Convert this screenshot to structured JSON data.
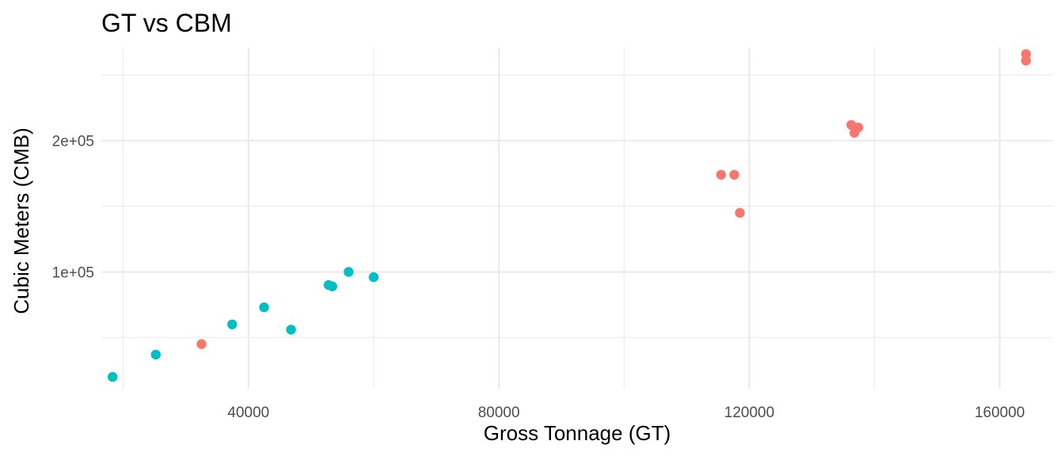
{
  "chart_data": {
    "type": "scatter",
    "title": "GT vs CBM",
    "xlabel": "Gross Tonnage (GT)",
    "ylabel": "Cubic Meters (CMB)",
    "xlim": [
      16500,
      168500
    ],
    "ylim": [
      11000,
      271000
    ],
    "x_major_ticks": [
      40000,
      80000,
      120000,
      160000
    ],
    "x_tick_labels": [
      "40000",
      "80000",
      "120000",
      "160000"
    ],
    "x_minor_ticks": [
      20000,
      60000,
      100000,
      140000
    ],
    "y_major_ticks": [
      100000,
      200000
    ],
    "y_tick_labels": [
      "1e+05",
      "2e+05"
    ],
    "y_minor_ticks": [
      50000,
      150000,
      250000
    ],
    "grid": true,
    "legend": "none",
    "series": [
      {
        "color": "#F8766D",
        "points": [
          {
            "x": 32500,
            "y": 45000
          },
          {
            "x": 115500,
            "y": 174000
          },
          {
            "x": 117600,
            "y": 174000
          },
          {
            "x": 118500,
            "y": 145000
          },
          {
            "x": 136300,
            "y": 212000
          },
          {
            "x": 136800,
            "y": 206000
          },
          {
            "x": 137400,
            "y": 210000
          },
          {
            "x": 164200,
            "y": 266000
          },
          {
            "x": 164200,
            "y": 261000
          }
        ]
      },
      {
        "color": "#00BFC4",
        "points": [
          {
            "x": 18300,
            "y": 20000
          },
          {
            "x": 25200,
            "y": 37000
          },
          {
            "x": 37400,
            "y": 60000
          },
          {
            "x": 42500,
            "y": 73000
          },
          {
            "x": 46800,
            "y": 56000
          },
          {
            "x": 52800,
            "y": 90000
          },
          {
            "x": 53400,
            "y": 89000
          },
          {
            "x": 56000,
            "y": 100000
          },
          {
            "x": 60000,
            "y": 96000
          }
        ]
      }
    ]
  }
}
